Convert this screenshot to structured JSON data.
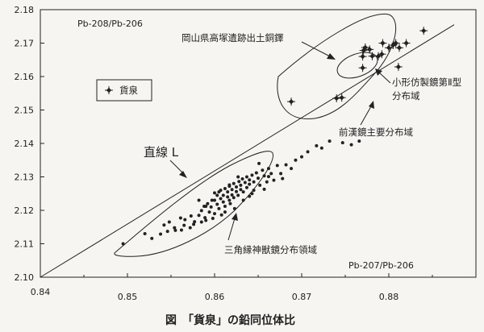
{
  "caption": "図　「貨泉」の鉛同位体比",
  "chart_data": {
    "type": "scatter",
    "xlim": [
      0.84,
      0.89
    ],
    "ylim": [
      2.1,
      2.18
    ],
    "x_ticks": [
      {
        "value": 0.84,
        "label": "0.84"
      },
      {
        "value": 0.85,
        "label": "0.85"
      },
      {
        "value": 0.86,
        "label": "0.86"
      },
      {
        "value": 0.87,
        "label": "0.87"
      },
      {
        "value": 0.88,
        "label": "0.88"
      }
    ],
    "y_ticks": [
      {
        "value": 2.1,
        "label": "2.10"
      },
      {
        "value": 2.11,
        "label": "2.11"
      },
      {
        "value": 2.12,
        "label": "2.12"
      },
      {
        "value": 2.13,
        "label": "2.13"
      },
      {
        "value": 2.14,
        "label": "2.14"
      },
      {
        "value": 2.15,
        "label": "2.15"
      },
      {
        "value": 2.16,
        "label": "2.16"
      },
      {
        "value": 2.17,
        "label": "2.17"
      },
      {
        "value": 2.18,
        "label": "2.18"
      }
    ],
    "ylabel": "Pb-208/Pb-206",
    "xlabel": "Pb-207/Pb-206",
    "grid": false,
    "legend": {
      "label": "貨泉",
      "marker": "plus-diamond"
    },
    "line_L": {
      "label": "直線 L",
      "from": [
        0.84,
        2.1
      ],
      "to": [
        0.8875,
        2.1755
      ]
    },
    "region_labels": {
      "okayama": "岡山県高塚遺跡出土銅鐸",
      "kogata_1": "小形仿製鏡第Ⅱ型",
      "kogata_2": "分布域",
      "zenkan": "前漢鏡主要分布域",
      "sankaku": "三角縁神獣鏡分布領域"
    },
    "series": [
      {
        "name": "貨泉",
        "marker": "plus-diamond",
        "points": [
          [
            0.8688,
            2.1525
          ],
          [
            0.874,
            2.1535
          ],
          [
            0.8746,
            2.1537
          ],
          [
            0.877,
            2.1626
          ],
          [
            0.877,
            2.166
          ],
          [
            0.8771,
            2.1678
          ],
          [
            0.8773,
            2.1687
          ],
          [
            0.8778,
            2.1681
          ],
          [
            0.8781,
            2.1661
          ],
          [
            0.8788,
            2.1661
          ],
          [
            0.8792,
            2.1667
          ],
          [
            0.8793,
            2.17
          ],
          [
            0.88,
            2.1686
          ],
          [
            0.8805,
            2.1694
          ],
          [
            0.8808,
            2.17
          ],
          [
            0.8811,
            2.1629
          ],
          [
            0.8812,
            2.1686
          ],
          [
            0.882,
            2.17
          ],
          [
            0.884,
            2.1737
          ]
        ]
      },
      {
        "name": "三角縁神獣鏡",
        "marker": "dot",
        "points": [
          [
            0.8495,
            2.11
          ],
          [
            0.8528,
            2.1116
          ],
          [
            0.8538,
            2.1129
          ],
          [
            0.8542,
            2.1156
          ],
          [
            0.8546,
            2.1137
          ],
          [
            0.8554,
            2.1148
          ],
          [
            0.8555,
            2.114
          ],
          [
            0.8562,
            2.1141
          ],
          [
            0.8566,
            2.1172
          ],
          [
            0.8565,
            2.1155
          ],
          [
            0.8573,
            2.1183
          ],
          [
            0.8576,
            2.1158
          ],
          [
            0.8577,
            2.1166
          ],
          [
            0.8582,
            2.1185
          ],
          [
            0.8585,
            2.1199
          ],
          [
            0.8588,
            2.1212
          ],
          [
            0.8589,
            2.1178
          ],
          [
            0.859,
            2.117
          ],
          [
            0.8592,
            2.122
          ],
          [
            0.8594,
            2.1195
          ],
          [
            0.8596,
            2.121
          ],
          [
            0.8597,
            2.123
          ],
          [
            0.86,
            2.119
          ],
          [
            0.86,
            2.123
          ],
          [
            0.8603,
            2.1218
          ],
          [
            0.8603,
            2.1245
          ],
          [
            0.8605,
            2.1205
          ],
          [
            0.8605,
            2.1255
          ],
          [
            0.8607,
            2.1235
          ],
          [
            0.8607,
            2.126
          ],
          [
            0.861,
            2.1225
          ],
          [
            0.861,
            2.1245
          ],
          [
            0.8612,
            2.1212
          ],
          [
            0.8612,
            2.1265
          ],
          [
            0.8615,
            2.124
          ],
          [
            0.8615,
            2.1255
          ],
          [
            0.8617,
            2.123
          ],
          [
            0.8617,
            2.1272
          ],
          [
            0.862,
            2.1246
          ],
          [
            0.862,
            2.1262
          ],
          [
            0.8622,
            2.1238
          ],
          [
            0.8622,
            2.128
          ],
          [
            0.8625,
            2.1256
          ],
          [
            0.8625,
            2.127
          ],
          [
            0.8627,
            2.1245
          ],
          [
            0.8628,
            2.1286
          ],
          [
            0.863,
            2.1262
          ],
          [
            0.863,
            2.1275
          ],
          [
            0.8632,
            2.1294
          ],
          [
            0.8633,
            2.1255
          ],
          [
            0.8635,
            2.1283
          ],
          [
            0.8637,
            2.1268
          ],
          [
            0.8637,
            2.13
          ],
          [
            0.864,
            2.1278
          ],
          [
            0.864,
            2.1291
          ],
          [
            0.8643,
            2.1305
          ],
          [
            0.8645,
            2.1285
          ],
          [
            0.8645,
            2.126
          ],
          [
            0.8648,
            2.1312
          ],
          [
            0.865,
            2.1296
          ],
          [
            0.8652,
            2.1275
          ],
          [
            0.8655,
            2.132
          ],
          [
            0.8657,
            2.1303
          ],
          [
            0.866,
            2.1285
          ],
          [
            0.8662,
            2.1325
          ],
          [
            0.8665,
            2.131
          ],
          [
            0.8668,
            2.129
          ],
          [
            0.8672,
            2.1334
          ],
          [
            0.8676,
            2.131
          ],
          [
            0.8682,
            2.1336
          ],
          [
            0.8688,
            2.1325
          ],
          [
            0.8693,
            2.135
          ],
          [
            0.87,
            2.136
          ],
          [
            0.8707,
            2.1375
          ],
          [
            0.8717,
            2.1393
          ],
          [
            0.8723,
            2.1386
          ],
          [
            0.8732,
            2.1407
          ],
          [
            0.8747,
            2.1402
          ],
          [
            0.8757,
            2.1396
          ],
          [
            0.8766,
            2.1407
          ],
          [
            0.8572,
            2.1148
          ],
          [
            0.8598,
            2.1176
          ],
          [
            0.8612,
            2.1195
          ],
          [
            0.8623,
            2.1205
          ],
          [
            0.864,
            2.1242
          ],
          [
            0.8657,
            2.1263
          ],
          [
            0.8678,
            2.1295
          ],
          [
            0.86,
            2.1252
          ],
          [
            0.8582,
            2.123
          ],
          [
            0.8627,
            2.13
          ],
          [
            0.8651,
            2.134
          ],
          [
            0.8617,
            2.1276
          ],
          [
            0.859,
            2.1212
          ],
          [
            0.8633,
            2.123
          ],
          [
            0.8618,
            2.122
          ],
          [
            0.8643,
            2.125
          ],
          [
            0.8662,
            2.1301
          ],
          [
            0.8608,
            2.1186
          ],
          [
            0.8585,
            2.1165
          ],
          [
            0.852,
            2.113
          ],
          [
            0.8548,
            2.1165
          ],
          [
            0.8561,
            2.1177
          ]
        ]
      }
    ]
  }
}
